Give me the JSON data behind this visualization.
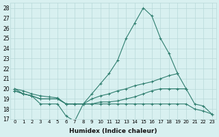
{
  "xlabel": "Humidex (Indice chaleur)",
  "x": [
    0,
    1,
    2,
    3,
    4,
    5,
    6,
    7,
    8,
    9,
    10,
    11,
    12,
    13,
    14,
    15,
    16,
    17,
    18,
    19,
    20,
    21,
    22,
    23
  ],
  "line1": [
    20.0,
    19.5,
    19.3,
    18.5,
    18.5,
    18.5,
    17.3,
    16.8,
    18.5,
    19.5,
    20.5,
    21.5,
    22.8,
    25.0,
    26.5,
    28.0,
    27.2,
    25.0,
    23.5,
    21.5,
    null,
    null,
    null,
    null
  ],
  "line2": [
    20.0,
    19.8,
    19.5,
    19.3,
    19.2,
    19.1,
    18.5,
    18.5,
    18.5,
    19.0,
    19.3,
    19.5,
    19.8,
    20.0,
    20.3,
    20.5,
    20.7,
    21.0,
    21.3,
    21.5,
    20.0,
    null,
    null,
    null
  ],
  "line3": [
    19.8,
    19.5,
    19.3,
    19.0,
    19.0,
    19.0,
    18.5,
    18.5,
    18.5,
    18.5,
    18.7,
    18.7,
    18.8,
    19.0,
    19.2,
    19.5,
    19.8,
    20.0,
    20.0,
    20.0,
    20.0,
    18.5,
    18.3,
    17.5
  ],
  "line4": [
    19.8,
    19.5,
    19.3,
    19.0,
    19.0,
    19.0,
    18.5,
    18.5,
    18.5,
    18.5,
    18.5,
    18.5,
    18.5,
    18.5,
    18.5,
    18.5,
    18.5,
    18.5,
    18.5,
    18.5,
    18.5,
    18.0,
    17.8,
    17.5
  ],
  "line_color": "#2e7d6e",
  "bg_color": "#d8f0f0",
  "grid_color": "#b8d8d8",
  "ylim": [
    17,
    28
  ],
  "yticks": [
    17,
    18,
    19,
    20,
    21,
    22,
    23,
    24,
    25,
    26,
    27,
    28
  ],
  "xticks": [
    0,
    1,
    2,
    3,
    4,
    5,
    6,
    7,
    8,
    9,
    10,
    11,
    12,
    13,
    14,
    15,
    16,
    17,
    18,
    19,
    20,
    21,
    22,
    23
  ],
  "xlim": [
    -0.5,
    23.5
  ]
}
